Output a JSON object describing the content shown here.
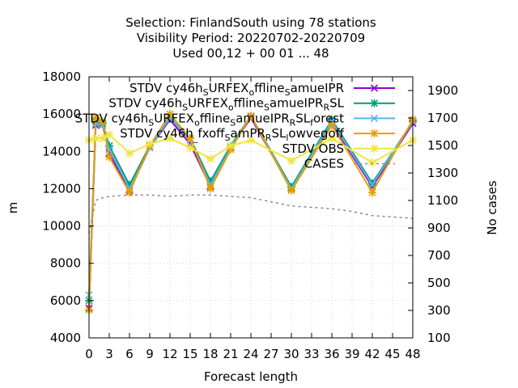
{
  "title_lines": [
    "Selection: FinlandSouth using    78 stations",
    "Visibility   Period: 20220702-20220709",
    "Used  00,12  + 00 01 ... 48"
  ],
  "chart_data": {
    "type": "line",
    "xlabel": "Forecast length",
    "ylabel": "m",
    "y2label": "No cases",
    "xlim": [
      0,
      48
    ],
    "ylim": [
      4000,
      18000
    ],
    "y2lim": [
      100,
      2000
    ],
    "xticks": [
      0,
      3,
      6,
      9,
      12,
      15,
      18,
      21,
      24,
      27,
      30,
      33,
      36,
      39,
      42,
      45,
      48
    ],
    "yticks": [
      4000,
      6000,
      8000,
      10000,
      12000,
      14000,
      16000,
      18000
    ],
    "y2ticks": [
      100,
      300,
      500,
      700,
      900,
      1100,
      1300,
      1500,
      1700,
      1900
    ],
    "grid": true,
    "legend_position": "top-right",
    "series": [
      {
        "name": "STDV cy46h_SURFEX_offline_SamueIPR",
        "legend_label": {
          "parts": [
            [
              "STDV cy46h",
              ""
            ],
            [
              "S",
              "sub"
            ],
            [
              "URFEX",
              ""
            ],
            [
              "o",
              "sub"
            ],
            [
              "ffline",
              ""
            ],
            [
              "S",
              "sub"
            ],
            [
              "amueIPR",
              ""
            ]
          ]
        },
        "color": "#9400d3",
        "marker": "x",
        "axis": "y",
        "x": [
          0,
          1,
          2,
          3,
          6,
          9,
          12,
          15,
          18,
          21,
          24,
          30,
          36,
          42,
          48
        ],
        "values": [
          5600,
          15400,
          15400,
          13900,
          11900,
          14200,
          15700,
          14400,
          12100,
          14200,
          15800,
          12000,
          15500,
          12100,
          15500
        ]
      },
      {
        "name": "STDV cy46h_SURFEX_offline_SamueIPR_RSL",
        "legend_label": {
          "parts": [
            [
              "STDV cy46h",
              ""
            ],
            [
              "S",
              "sub"
            ],
            [
              "URFEX",
              ""
            ],
            [
              "o",
              "sub"
            ],
            [
              "ffline",
              ""
            ],
            [
              "S",
              "sub"
            ],
            [
              "amueIPR",
              ""
            ],
            [
              "R",
              "sub"
            ],
            [
              "SL",
              ""
            ]
          ]
        },
        "color": "#009e73",
        "marker": "*",
        "axis": "y",
        "x": [
          0,
          1,
          2,
          3,
          6,
          9,
          12,
          15,
          18,
          21,
          24,
          30,
          36,
          42,
          48
        ],
        "values": [
          6000,
          15600,
          15500,
          14300,
          12200,
          14300,
          15800,
          14700,
          12400,
          14300,
          15900,
          12100,
          15700,
          12300,
          15600
        ]
      },
      {
        "name": "STDV cy46h_SURFEX_offline_SamueIPR_RSL_forest",
        "legend_label": {
          "parts": [
            [
              "STDV cy46h",
              ""
            ],
            [
              "S",
              "sub"
            ],
            [
              "URFEX",
              ""
            ],
            [
              "o",
              "sub"
            ],
            [
              "ffline",
              ""
            ],
            [
              "S",
              "sub"
            ],
            [
              "amueIPR",
              ""
            ],
            [
              "R",
              "sub"
            ],
            [
              "SL",
              ""
            ],
            [
              "f",
              "sub"
            ],
            [
              "orest",
              ""
            ]
          ]
        },
        "color": "#56b4e9",
        "marker": "x",
        "axis": "y",
        "x": [
          0,
          1,
          2,
          3,
          6,
          9,
          12,
          15,
          18,
          21,
          24,
          30,
          36,
          42,
          48
        ],
        "values": [
          6300,
          15500,
          15400,
          14100,
          12000,
          14200,
          15800,
          14600,
          12200,
          14200,
          15900,
          12000,
          15600,
          12200,
          15600
        ]
      },
      {
        "name": "STDV cy46h_fxoff_SamPR_RSL_lowvegoff",
        "legend_label": {
          "parts": [
            [
              "STDV cy46h",
              ""
            ],
            [
              "_",
              "sub"
            ],
            [
              "fxoff",
              ""
            ],
            [
              "S",
              "sub"
            ],
            [
              "amPR",
              ""
            ],
            [
              "R",
              "sub"
            ],
            [
              "SL",
              ""
            ],
            [
              "l",
              "sub"
            ],
            [
              "owvegoff",
              ""
            ]
          ]
        },
        "color": "#e69f00",
        "marker": "*",
        "axis": "y",
        "x": [
          0,
          1,
          2,
          3,
          6,
          9,
          12,
          15,
          18,
          21,
          24,
          30,
          36,
          42,
          48
        ],
        "values": [
          5500,
          15800,
          15600,
          13700,
          11800,
          14300,
          16000,
          14700,
          12000,
          14100,
          15900,
          11900,
          15400,
          11800,
          15700
        ]
      },
      {
        "name": "STDV OBS",
        "legend_label": {
          "parts": [
            [
              "STDV OBS",
              ""
            ]
          ]
        },
        "color": "#f0e442",
        "marker": "*",
        "axis": "y",
        "x": [
          0,
          1,
          2,
          3,
          6,
          9,
          12,
          15,
          18,
          21,
          24,
          30,
          36,
          42,
          48
        ],
        "values": [
          14600,
          14700,
          14700,
          14900,
          13900,
          14400,
          14700,
          14200,
          13600,
          14300,
          14600,
          13500,
          14700,
          13400,
          14600
        ]
      },
      {
        "name": "CASES",
        "legend_label": {
          "parts": [
            [
              "CASES",
              ""
            ]
          ]
        },
        "color": "#888888",
        "marker": "none",
        "dashed": true,
        "axis": "y2",
        "x": [
          0,
          1,
          2,
          3,
          6,
          9,
          12,
          15,
          18,
          21,
          24,
          27,
          30,
          33,
          36,
          39,
          42,
          45,
          48
        ],
        "values": [
          860,
          1100,
          1120,
          1130,
          1140,
          1140,
          1130,
          1140,
          1140,
          1130,
          1120,
          1090,
          1060,
          1050,
          1040,
          1020,
          990,
          980,
          970
        ]
      }
    ]
  }
}
